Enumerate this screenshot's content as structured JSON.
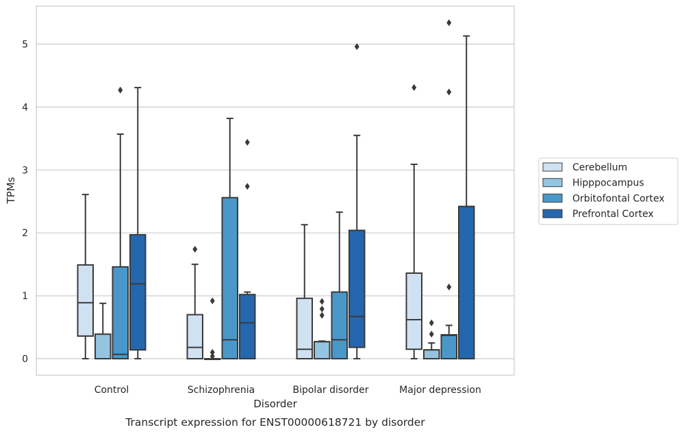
{
  "chart_data": {
    "type": "box",
    "caption": "Transcript expression for ENST00000618721 by disorder",
    "xlabel": "Disorder",
    "ylabel": "TPMs",
    "ylim": [
      -0.25,
      5.6
    ],
    "yticks": [
      0,
      1,
      2,
      3,
      4,
      5
    ],
    "grid": "horizontal",
    "legend_position": "right",
    "categories": [
      "Control",
      "Schizophrenia",
      "Bipolar disorder",
      "Major depression"
    ],
    "series": [
      {
        "name": "Cerebellum",
        "color": "#d0e1f2",
        "boxes": [
          {
            "whisker_low": 0,
            "q1": 0.36,
            "median": 0.89,
            "q3": 1.49,
            "whisker_high": 2.61,
            "outliers": []
          },
          {
            "whisker_low": 0,
            "q1": 0,
            "median": 0.18,
            "q3": 0.7,
            "whisker_high": 1.5,
            "outliers": [
              1.74
            ]
          },
          {
            "whisker_low": 0,
            "q1": 0,
            "median": 0.15,
            "q3": 0.96,
            "whisker_high": 2.13,
            "outliers": []
          },
          {
            "whisker_low": 0,
            "q1": 0.15,
            "median": 0.62,
            "q3": 1.36,
            "whisker_high": 3.09,
            "outliers": [
              4.31
            ]
          }
        ]
      },
      {
        "name": "Hipppocampus",
        "color": "#94c4df",
        "boxes": [
          {
            "whisker_low": 0,
            "q1": 0,
            "median": 0,
            "q3": 0.39,
            "whisker_high": 0.88,
            "outliers": []
          },
          {
            "whisker_low": 0,
            "q1": 0,
            "median": 0,
            "q3": 0,
            "whisker_high": 0,
            "outliers": [
              0.04,
              0.1,
              0.92
            ]
          },
          {
            "whisker_low": 0,
            "q1": 0,
            "median": 0.27,
            "q3": 0.27,
            "whisker_high": 0.28,
            "outliers": [
              0.69,
              0.79,
              0.91
            ]
          },
          {
            "whisker_low": 0,
            "q1": 0,
            "median": 0.14,
            "q3": 0.14,
            "whisker_high": 0.25,
            "outliers": [
              0.39,
              0.57
            ]
          }
        ]
      },
      {
        "name": "Orbitofontal Cortex",
        "color": "#4a98c9",
        "boxes": [
          {
            "whisker_low": 0,
            "q1": 0,
            "median": 0.07,
            "q3": 1.46,
            "whisker_high": 3.57,
            "outliers": [
              4.27
            ]
          },
          {
            "whisker_low": 0,
            "q1": 0,
            "median": 0.3,
            "q3": 2.56,
            "whisker_high": 3.82,
            "outliers": []
          },
          {
            "whisker_low": 0,
            "q1": 0,
            "median": 0.3,
            "q3": 1.06,
            "whisker_high": 2.33,
            "outliers": []
          },
          {
            "whisker_low": 0,
            "q1": 0,
            "median": 0.37,
            "q3": 0.38,
            "whisker_high": 0.53,
            "outliers": [
              1.14,
              4.24,
              5.34
            ]
          }
        ]
      },
      {
        "name": "Prefrontal Cortex",
        "color": "#2467ad",
        "boxes": [
          {
            "whisker_low": 0,
            "q1": 0.14,
            "median": 1.19,
            "q3": 1.97,
            "whisker_high": 4.31,
            "outliers": []
          },
          {
            "whisker_low": 0,
            "q1": 0,
            "median": 0.57,
            "q3": 1.02,
            "whisker_high": 1.06,
            "outliers": [
              2.74,
              3.44
            ]
          },
          {
            "whisker_low": 0,
            "q1": 0.18,
            "median": 0.67,
            "q3": 2.04,
            "whisker_high": 3.55,
            "outliers": [
              4.96
            ]
          },
          {
            "whisker_low": 0,
            "q1": 0,
            "median": 2.42,
            "q3": 2.42,
            "whisker_high": 5.13,
            "outliers": []
          }
        ]
      }
    ]
  }
}
